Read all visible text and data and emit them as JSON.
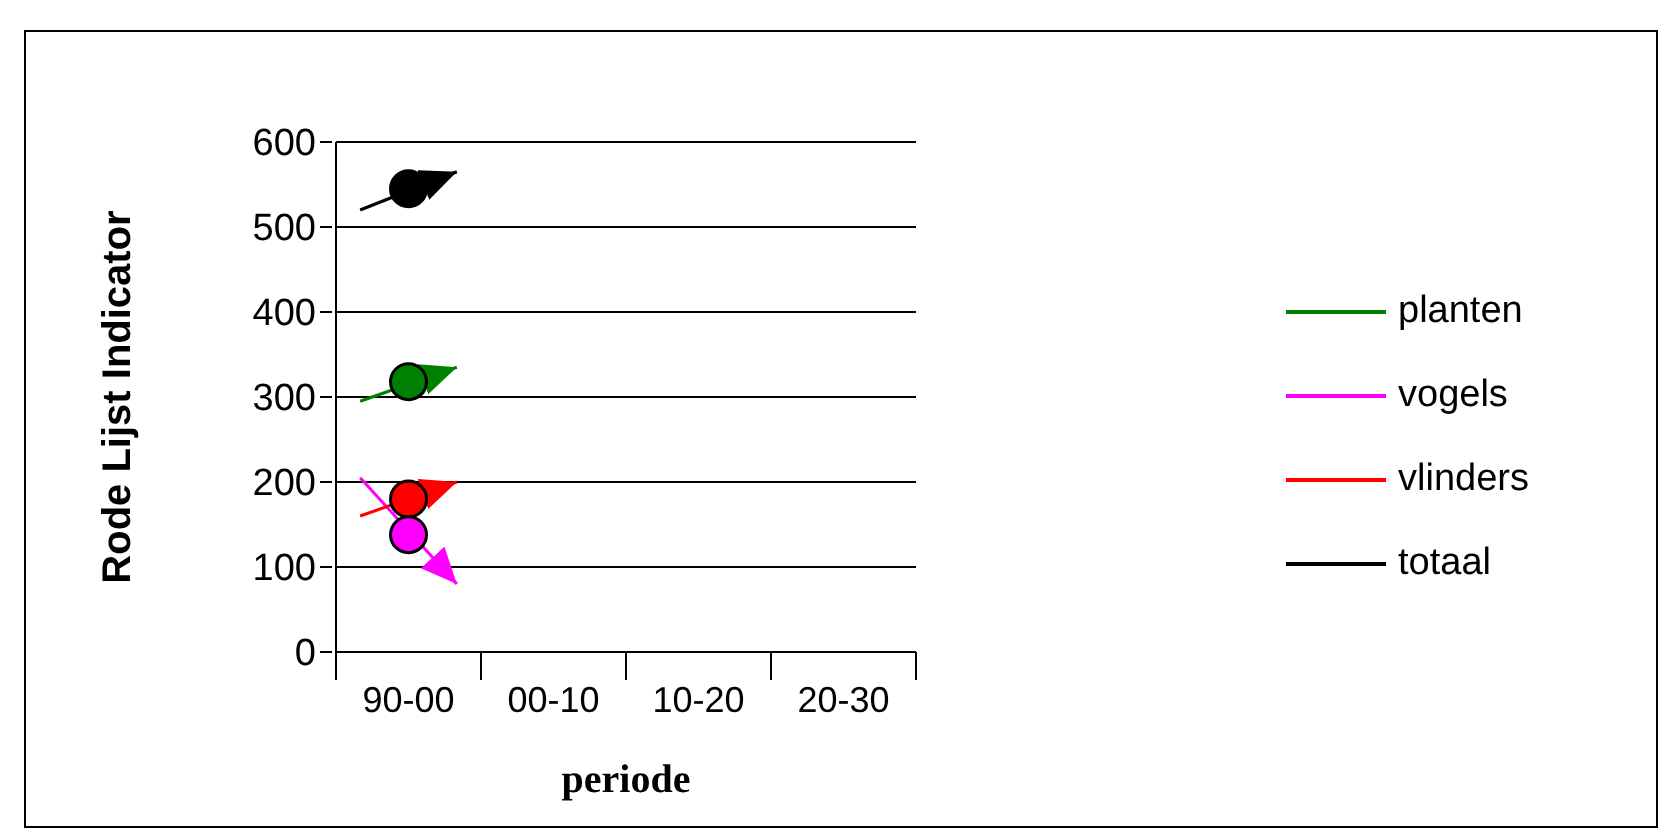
{
  "chart_data": {
    "type": "line",
    "xlabel": "periode",
    "ylabel": "Rode Lijst Indicator",
    "categories": [
      null,
      "90-00",
      null,
      null,
      "00-10",
      null,
      null,
      "10-20",
      null,
      null,
      "20-30",
      null
    ],
    "ylim": [
      0,
      600
    ],
    "yticks": [
      0,
      100,
      200,
      300,
      400,
      500,
      600
    ],
    "grid": "y",
    "legend": "right",
    "series": [
      {
        "name": "planten",
        "color": "#008000",
        "values": [
          295,
          null,
          335,
          null,
          null,
          null,
          null,
          null,
          null,
          null,
          null,
          null
        ]
      },
      {
        "name": "vogels",
        "color": "#ff00ff",
        "values": [
          205,
          null,
          80,
          null,
          null,
          null,
          null,
          null,
          null,
          null,
          null,
          null
        ]
      },
      {
        "name": "vlinders",
        "color": "#ff0000",
        "values": [
          160,
          null,
          200,
          null,
          null,
          null,
          null,
          null,
          null,
          null,
          null,
          null
        ]
      },
      {
        "name": "totaal",
        "color": "#000000",
        "values": [
          520,
          null,
          565,
          null,
          null,
          null,
          null,
          null,
          null,
          null,
          null,
          null
        ]
      },
      {
        "type": "scatter",
        "marker": "circle",
        "color": "#000000",
        "values": [
          null,
          545,
          null,
          null,
          null,
          null,
          null,
          null,
          null,
          null,
          null,
          null
        ]
      },
      {
        "type": "scatter",
        "marker": "circle",
        "color": "#008000",
        "values": [
          null,
          318,
          null,
          null,
          null,
          null,
          null,
          null,
          null,
          null,
          null,
          null
        ]
      },
      {
        "type": "scatter",
        "marker": "circle",
        "color": "#ff0000",
        "values": [
          null,
          180,
          null,
          null,
          null,
          null,
          null,
          null,
          null,
          null,
          null,
          null
        ]
      },
      {
        "type": "scatter",
        "marker": "circle",
        "color": "#ff00ff",
        "values": [
          null,
          138,
          null,
          null,
          null,
          null,
          null,
          null,
          null,
          null,
          null,
          null
        ]
      }
    ]
  }
}
